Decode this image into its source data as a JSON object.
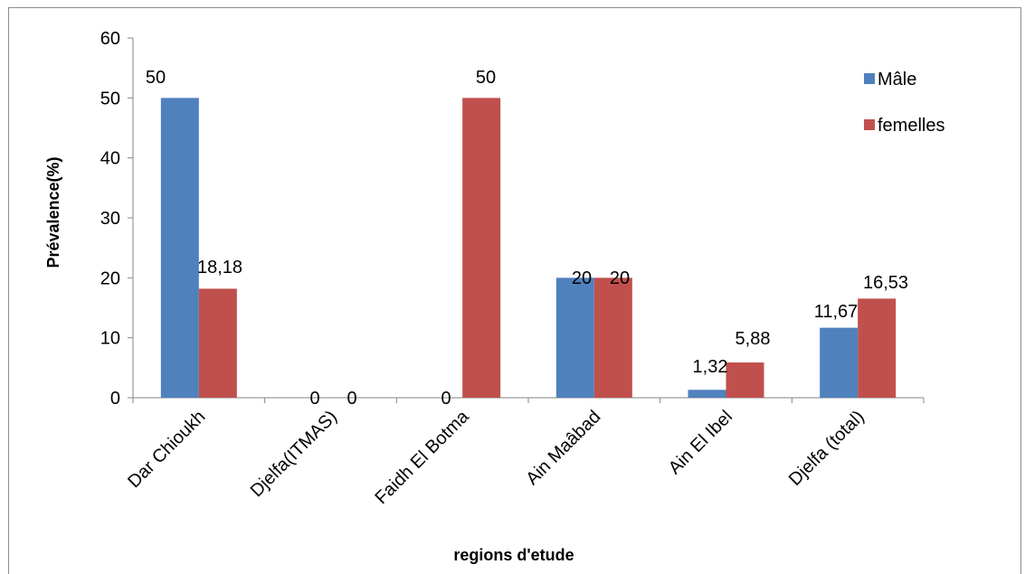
{
  "chart_data": {
    "type": "bar",
    "categories": [
      "Dar Chioukh",
      "Djelfa(ITMAS)",
      "Faidh El Botma",
      "Ain Maâbad",
      "Ain El Ibel",
      "Djelfa (total)"
    ],
    "series": [
      {
        "name": "Mâle",
        "color": "#4f81bd",
        "values": [
          50,
          0,
          0,
          20,
          1.32,
          11.67
        ],
        "labels": [
          "50",
          "0",
          "0",
          "20",
          "1,32",
          "11,67"
        ]
      },
      {
        "name": "femelles",
        "color": "#c0504d",
        "values": [
          18.18,
          0,
          50,
          20,
          5.88,
          16.53
        ],
        "labels": [
          "18,18",
          "0",
          "",
          "20",
          "5,88",
          "16,53"
        ]
      }
    ],
    "title": "",
    "xlabel": "regions d'etude",
    "ylabel": "Prévalence(%)",
    "ylim": [
      0,
      60
    ],
    "yticks": [
      0,
      10,
      20,
      30,
      40,
      50,
      60
    ],
    "grid": false,
    "legend": "right"
  },
  "extra_labels": {
    "faidh_female_top": "50"
  }
}
